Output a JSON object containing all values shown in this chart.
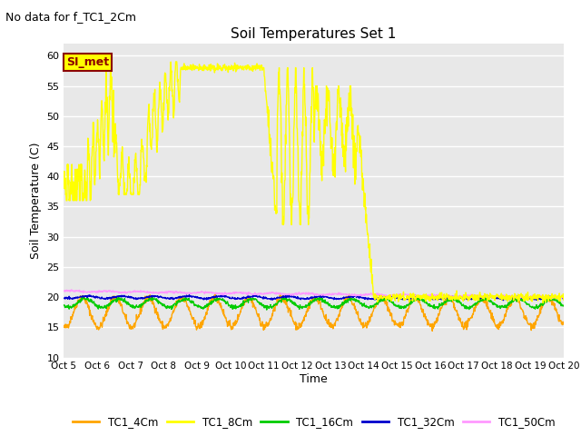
{
  "title": "Soil Temperatures Set 1",
  "subtitle": "No data for f_TC1_2Cm",
  "ylabel": "Soil Temperature (C)",
  "xlabel": "Time",
  "ylim": [
    10,
    62
  ],
  "yticks": [
    10,
    15,
    20,
    25,
    30,
    35,
    40,
    45,
    50,
    55,
    60
  ],
  "x_labels": [
    "Oct 5",
    "Oct 6",
    "Oct 7",
    "Oct 8",
    "Oct 9",
    "Oct 10",
    "Oct 11",
    "Oct 12",
    "Oct 13",
    "Oct 14",
    "Oct 15",
    "Oct 16",
    "Oct 17",
    "Oct 18",
    "Oct 19",
    "Oct 20"
  ],
  "bg_color": "#e8e8e8",
  "grid_color": "#ffffff",
  "legend_label": "SI_met",
  "legend_box_color": "#ffff00",
  "legend_box_edge": "#8b0000",
  "colors": {
    "TC1_4Cm": "#ffa500",
    "TC1_8Cm": "#ffff00",
    "TC1_16Cm": "#00cc00",
    "TC1_32Cm": "#0000cc",
    "TC1_50Cm": "#ff99ff"
  },
  "figsize": [
    6.4,
    4.8
  ],
  "dpi": 100
}
